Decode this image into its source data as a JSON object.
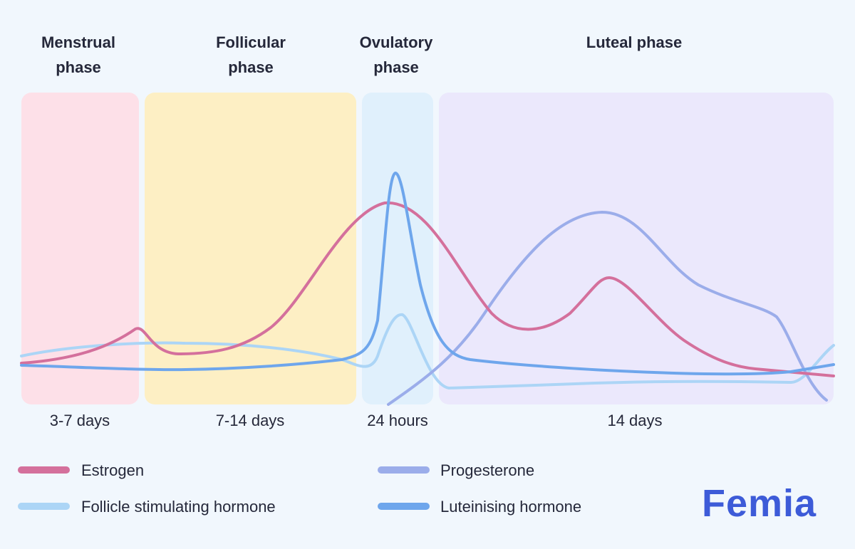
{
  "phases": [
    {
      "title": "Menstrual phase",
      "duration": "3-7 days",
      "color": "#fde0e8"
    },
    {
      "title": "Follicular phase",
      "duration": "7-14 days",
      "color": "#fdefc4"
    },
    {
      "title": "Ovulatory phase",
      "duration": "24 hours",
      "color": "#e0f0fc"
    },
    {
      "title": "Luteal phase",
      "duration": "14 days",
      "color": "#ebe8fc"
    }
  ],
  "legend": [
    {
      "name": "Estrogen",
      "color": "#d4709c"
    },
    {
      "name": "Follicle stimulating hormone",
      "color": "#acd5f6"
    },
    {
      "name": "Progesterone",
      "color": "#9badea"
    },
    {
      "name": "Luteinising hormone",
      "color": "#6ea6ec"
    }
  ],
  "brand": "Femia"
}
